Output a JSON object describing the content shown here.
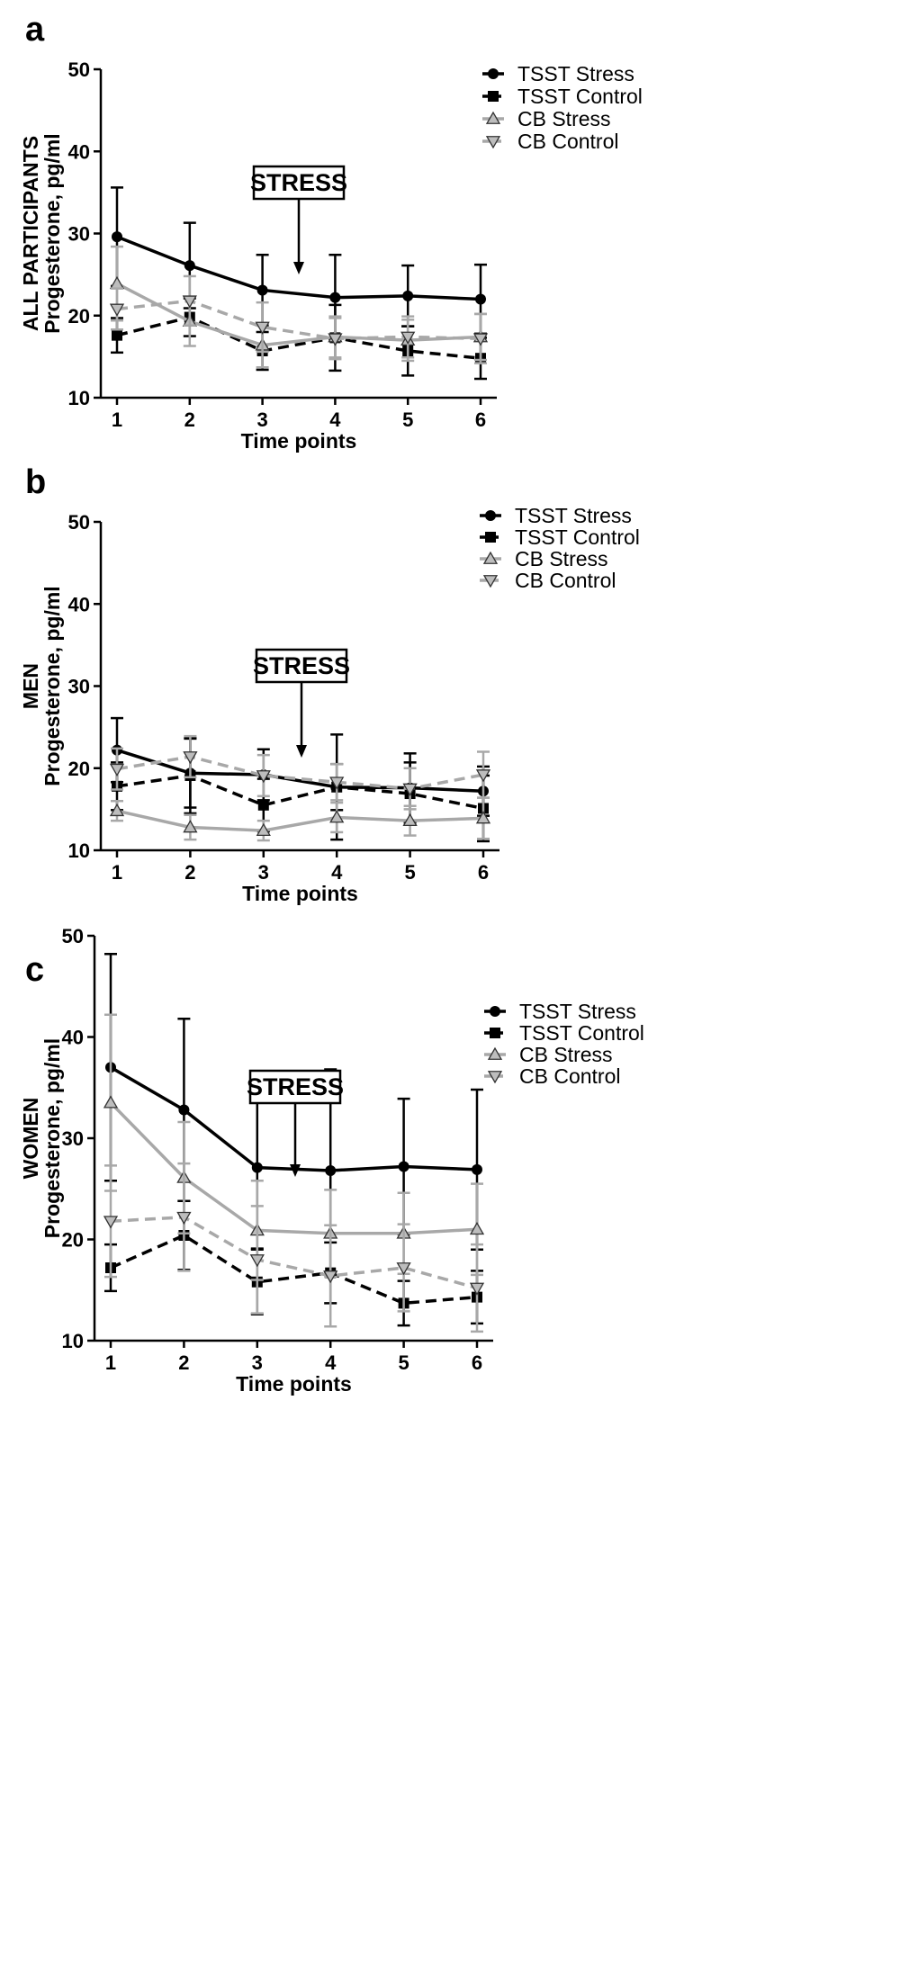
{
  "chart_data": [
    {
      "type": "line",
      "panel_label": "a",
      "ylabel_top": "ALL PARTICIPANTS",
      "ylabel": "Progesterone, pg/ml",
      "xlabel": "Time points",
      "x": [
        1,
        2,
        3,
        4,
        5,
        6
      ],
      "ylim": [
        10,
        50
      ],
      "yticks": [
        10,
        20,
        30,
        40,
        50
      ],
      "annotation": {
        "text": "STRESS",
        "x": 3.5
      },
      "series": [
        {
          "name": "TSST Stress",
          "color": "#000000",
          "dashed": false,
          "marker": "circle",
          "values": [
            29.6,
            26.1,
            23.1,
            22.2,
            22.4,
            22.0
          ],
          "err": [
            6.0,
            5.2,
            4.3,
            5.2,
            3.7,
            4.2
          ]
        },
        {
          "name": "TSST Control",
          "color": "#000000",
          "dashed": true,
          "marker": "square",
          "values": [
            17.6,
            19.8,
            15.7,
            17.3,
            15.7,
            14.8
          ],
          "err": [
            2.1,
            2.3,
            2.3,
            4.0,
            3.0,
            2.5
          ]
        },
        {
          "name": "CB Stress",
          "color": "#999999",
          "dashed": false,
          "marker": "triangle-up",
          "values": [
            23.9,
            19.3,
            16.4,
            17.4,
            17.0,
            17.4
          ],
          "err": [
            4.5,
            3.0,
            2.7,
            2.5,
            2.5,
            2.8
          ]
        },
        {
          "name": "CB Control",
          "color": "#999999",
          "dashed": true,
          "marker": "triangle-down",
          "values": [
            20.8,
            21.8,
            18.6,
            17.2,
            17.4,
            17.2
          ],
          "err": [
            2.5,
            3.0,
            3.0,
            2.5,
            2.5,
            3.0
          ]
        }
      ]
    },
    {
      "type": "line",
      "panel_label": "b",
      "ylabel_top": "MEN",
      "ylabel": "Progesterone, pg/ml",
      "xlabel": "Time points",
      "x": [
        1,
        2,
        3,
        4,
        5,
        6
      ],
      "ylim": [
        10,
        50
      ],
      "yticks": [
        10,
        20,
        30,
        40,
        50
      ],
      "annotation": {
        "text": "STRESS",
        "x": 3.5
      },
      "series": [
        {
          "name": "TSST Stress",
          "color": "#000000",
          "dashed": false,
          "marker": "circle",
          "values": [
            22.2,
            19.4,
            19.2,
            17.7,
            17.6,
            17.2
          ],
          "err": [
            3.9,
            4.2,
            3.1,
            6.4,
            4.2,
            3.0
          ]
        },
        {
          "name": "TSST Control",
          "color": "#000000",
          "dashed": true,
          "marker": "square",
          "values": [
            17.8,
            19.1,
            15.5,
            17.7,
            16.9,
            15.1
          ],
          "err": [
            2.9,
            4.6,
            3.2,
            2.8,
            3.8,
            4.0
          ]
        },
        {
          "name": "CB Stress",
          "color": "#999999",
          "dashed": false,
          "marker": "triangle-up",
          "values": [
            14.8,
            12.8,
            12.4,
            14.0,
            13.6,
            13.9
          ],
          "err": [
            1.2,
            1.5,
            1.2,
            1.8,
            1.8,
            2.5
          ]
        },
        {
          "name": "CB Control",
          "color": "#999999",
          "dashed": true,
          "marker": "triangle-down",
          "values": [
            19.9,
            21.4,
            19.1,
            18.3,
            17.5,
            19.2
          ],
          "err": [
            2.5,
            2.5,
            2.5,
            2.2,
            2.5,
            2.8
          ]
        }
      ]
    },
    {
      "type": "line",
      "panel_label": "c",
      "ylabel_top": "WOMEN",
      "ylabel": "Progesterone, pg/ml",
      "xlabel": "Time points",
      "x": [
        1,
        2,
        3,
        4,
        5,
        6
      ],
      "ylim": [
        10,
        50
      ],
      "yticks": [
        10,
        20,
        30,
        40,
        50
      ],
      "annotation": {
        "text": "STRESS",
        "x": 3.5
      },
      "series": [
        {
          "name": "TSST Stress",
          "color": "#000000",
          "dashed": false,
          "marker": "circle",
          "values": [
            37.0,
            32.8,
            27.1,
            26.8,
            27.2,
            26.9
          ],
          "err": [
            11.2,
            9.0,
            8.0,
            10.0,
            6.7,
            7.9
          ]
        },
        {
          "name": "TSST Control",
          "color": "#000000",
          "dashed": true,
          "marker": "square",
          "values": [
            17.2,
            20.4,
            15.8,
            16.7,
            13.7,
            14.3
          ],
          "err": [
            2.3,
            3.4,
            3.2,
            3.0,
            2.2,
            2.6
          ]
        },
        {
          "name": "CB Stress",
          "color": "#999999",
          "dashed": false,
          "marker": "triangle-up",
          "values": [
            33.5,
            26.1,
            20.9,
            20.6,
            20.6,
            21.0
          ],
          "err": [
            8.7,
            5.5,
            4.9,
            4.3,
            4.0,
            4.5
          ]
        },
        {
          "name": "CB Control",
          "color": "#999999",
          "dashed": true,
          "marker": "triangle-down",
          "values": [
            21.8,
            22.2,
            18.0,
            16.4,
            17.2,
            15.2
          ],
          "err": [
            5.5,
            5.3,
            5.3,
            5.0,
            4.3,
            4.3
          ]
        }
      ]
    }
  ]
}
